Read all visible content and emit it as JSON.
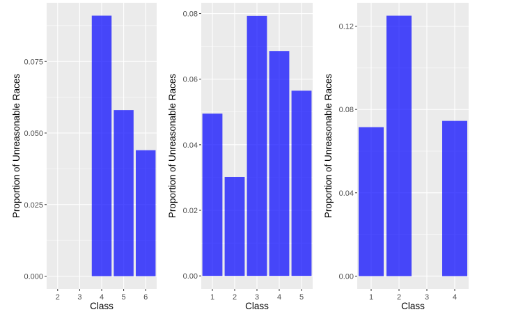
{
  "chart_data": [
    {
      "type": "bar",
      "xlabel": "Class",
      "ylabel": "Proportion of Unreasonable Races",
      "categories": [
        "2",
        "3",
        "4",
        "5",
        "6"
      ],
      "values": [
        0,
        0,
        0.091,
        0.058,
        0.044
      ],
      "yticks": [
        "0.000",
        "0.025",
        "0.050",
        "0.075"
      ],
      "ylim": [
        -0.0045,
        0.0955
      ],
      "grid": true,
      "color": "#0000ff"
    },
    {
      "type": "bar",
      "xlabel": "Class",
      "ylabel": "Proportion of Unreasonable Races",
      "categories": [
        "1",
        "2",
        "3",
        "4",
        "5"
      ],
      "values": [
        0.0495,
        0.0302,
        0.0793,
        0.0686,
        0.0565
      ],
      "yticks": [
        "0.00",
        "0.02",
        "0.04",
        "0.06",
        "0.08"
      ],
      "ylim": [
        -0.004,
        0.0833
      ],
      "grid": true,
      "color": "#0000ff"
    },
    {
      "type": "bar",
      "xlabel": "Class",
      "ylabel": "Proportion of Unreasonable Races",
      "categories": [
        "1",
        "2",
        "3",
        "4"
      ],
      "values": [
        0.0715,
        0.125,
        0,
        0.0745
      ],
      "yticks": [
        "0.00",
        "0.04",
        "0.08",
        "0.12"
      ],
      "ylim": [
        -0.0062,
        0.1312
      ],
      "grid": true,
      "color": "#0000ff"
    }
  ]
}
